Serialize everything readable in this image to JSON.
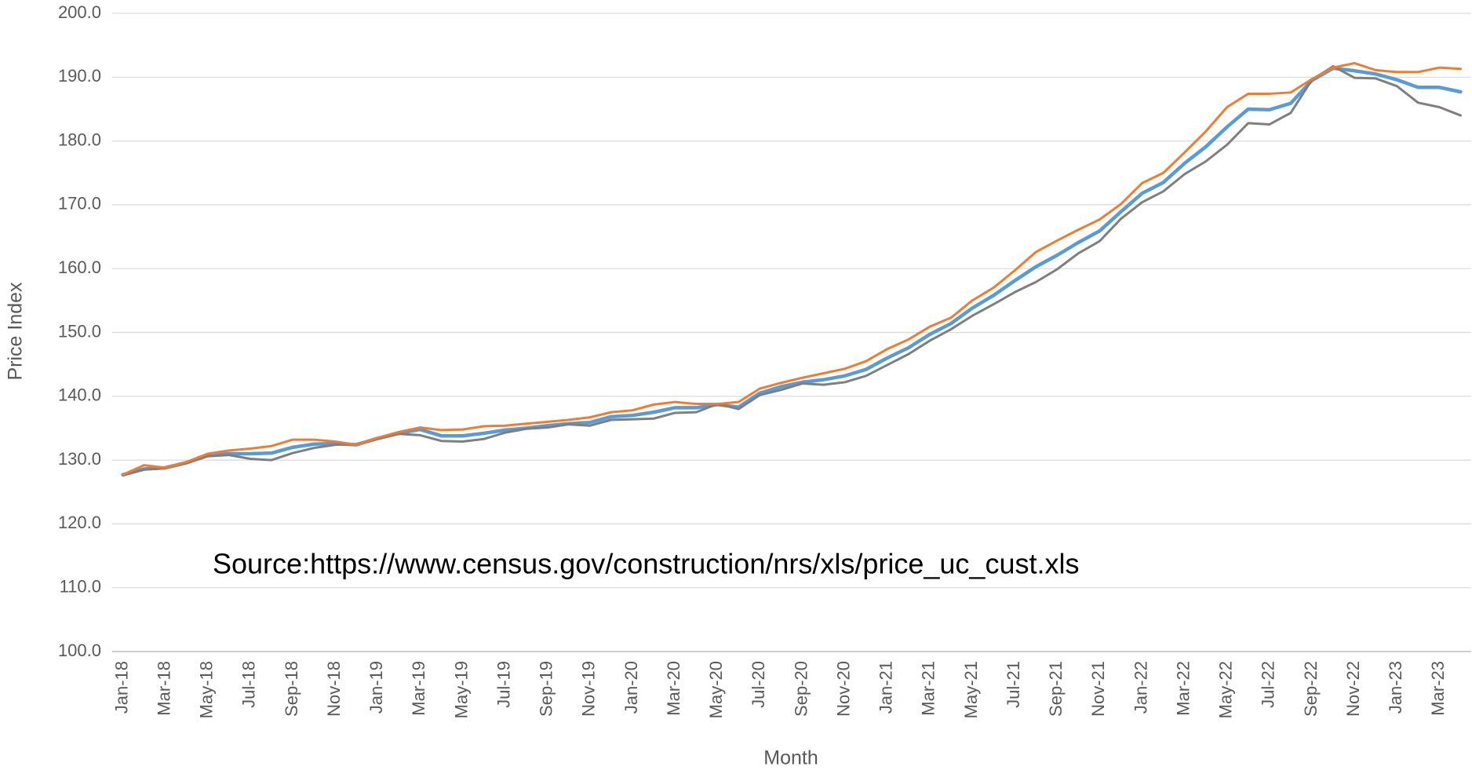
{
  "chart_data": {
    "type": "line",
    "xlabel": "Month",
    "ylabel": "Price Index",
    "annotation": "Source:https://www.census.gov/construction/nrs/xls/price_uc_cust.xls",
    "categories": [
      "Jan-18",
      null,
      "Mar-18",
      null,
      "May-18",
      null,
      "Jul-18",
      null,
      "Sep-18",
      null,
      "Nov-18",
      null,
      "Jan-19",
      null,
      "Mar-19",
      null,
      "May-19",
      null,
      "Jul-19",
      null,
      "Sep-19",
      null,
      "Nov-19",
      null,
      "Jan-20",
      null,
      "Mar-20",
      null,
      "May-20",
      null,
      "Jul-20",
      null,
      "Sep-20",
      null,
      "Nov-20",
      null,
      "Jan-21",
      null,
      "Mar-21",
      null,
      "May-21",
      null,
      "Jul-21",
      null,
      "Sep-21",
      null,
      "Nov-21",
      null,
      "Jan-22",
      null,
      "Mar-22",
      null,
      "May-22",
      null,
      "Jul-22",
      null,
      "Sep-22",
      null,
      "Nov-22",
      null,
      "Jan-23",
      null,
      "Mar-23",
      null
    ],
    "series": [
      {
        "color": "#5b9bd5",
        "width": 4.5,
        "values": [
          127.7,
          128.6,
          128.8,
          129.6,
          130.8,
          131.0,
          131.0,
          131.1,
          132.0,
          132.5,
          132.6,
          132.4,
          133.4,
          134.2,
          134.8,
          133.8,
          133.8,
          134.2,
          134.7,
          135.0,
          135.4,
          135.7,
          135.9,
          136.8,
          137.0,
          137.5,
          138.2,
          138.2,
          138.7,
          138.3,
          140.5,
          141.5,
          142.2,
          142.6,
          143.2,
          144.2,
          146.0,
          147.6,
          149.7,
          151.4,
          153.8,
          155.8,
          158.1,
          160.3,
          162.1,
          164.1,
          165.9,
          168.9,
          171.8,
          173.5,
          176.5,
          179.1,
          182.2,
          185.0,
          184.9,
          185.9,
          189.5,
          191.4,
          191.0,
          190.5,
          189.6,
          188.4,
          188.4,
          187.7
        ]
      },
      {
        "color": "#7f7f7f",
        "width": 3,
        "values": [
          127.6,
          128.5,
          128.7,
          129.5,
          130.6,
          130.8,
          130.2,
          130.0,
          131.1,
          131.9,
          132.4,
          132.5,
          133.3,
          134.1,
          133.9,
          133.0,
          132.9,
          133.3,
          134.3,
          134.9,
          135.1,
          135.6,
          135.4,
          136.3,
          136.4,
          136.5,
          137.4,
          137.5,
          138.8,
          138.0,
          140.2,
          141.0,
          142.0,
          141.8,
          142.2,
          143.2,
          144.9,
          146.6,
          148.7,
          150.5,
          152.6,
          154.4,
          156.3,
          157.9,
          159.9,
          162.4,
          164.3,
          167.8,
          170.4,
          172.1,
          174.8,
          176.8,
          179.4,
          182.8,
          182.6,
          184.4,
          189.6,
          191.7,
          189.9,
          189.8,
          188.6,
          186.0,
          185.3,
          184.0
        ]
      },
      {
        "color": "#ed7d31",
        "width": 3,
        "values": [
          127.7,
          129.2,
          128.8,
          129.7,
          131.0,
          131.5,
          131.8,
          132.2,
          133.2,
          133.2,
          132.9,
          132.4,
          133.5,
          134.4,
          135.1,
          134.7,
          134.8,
          135.3,
          135.4,
          135.7,
          136.0,
          136.3,
          136.7,
          137.5,
          137.8,
          138.7,
          139.1,
          138.8,
          138.8,
          139.1,
          141.2,
          142.1,
          142.9,
          143.6,
          144.3,
          145.5,
          147.4,
          148.9,
          150.9,
          152.3,
          155.0,
          157.0,
          159.7,
          162.6,
          164.4,
          166.1,
          167.7,
          170.1,
          173.4,
          175.0,
          178.2,
          181.5,
          185.3,
          187.4,
          187.4,
          187.6,
          189.7,
          191.5,
          192.2,
          191.1,
          190.8,
          190.8,
          191.5,
          191.3
        ]
      }
    ],
    "ylim": [
      100,
      200
    ],
    "yticks": [
      {
        "value": 100,
        "label": "100.0"
      },
      {
        "value": 110,
        "label": "110.0"
      },
      {
        "value": 120,
        "label": "120.0"
      },
      {
        "value": 130,
        "label": "130.0"
      },
      {
        "value": 140,
        "label": "140.0"
      },
      {
        "value": 150,
        "label": "150.0"
      },
      {
        "value": 160,
        "label": "160.0"
      },
      {
        "value": 170,
        "label": "170.0"
      },
      {
        "value": 180,
        "label": "180.0"
      },
      {
        "value": 190,
        "label": "190.0"
      },
      {
        "value": 200,
        "label": "200.0"
      }
    ],
    "grid": true
  }
}
